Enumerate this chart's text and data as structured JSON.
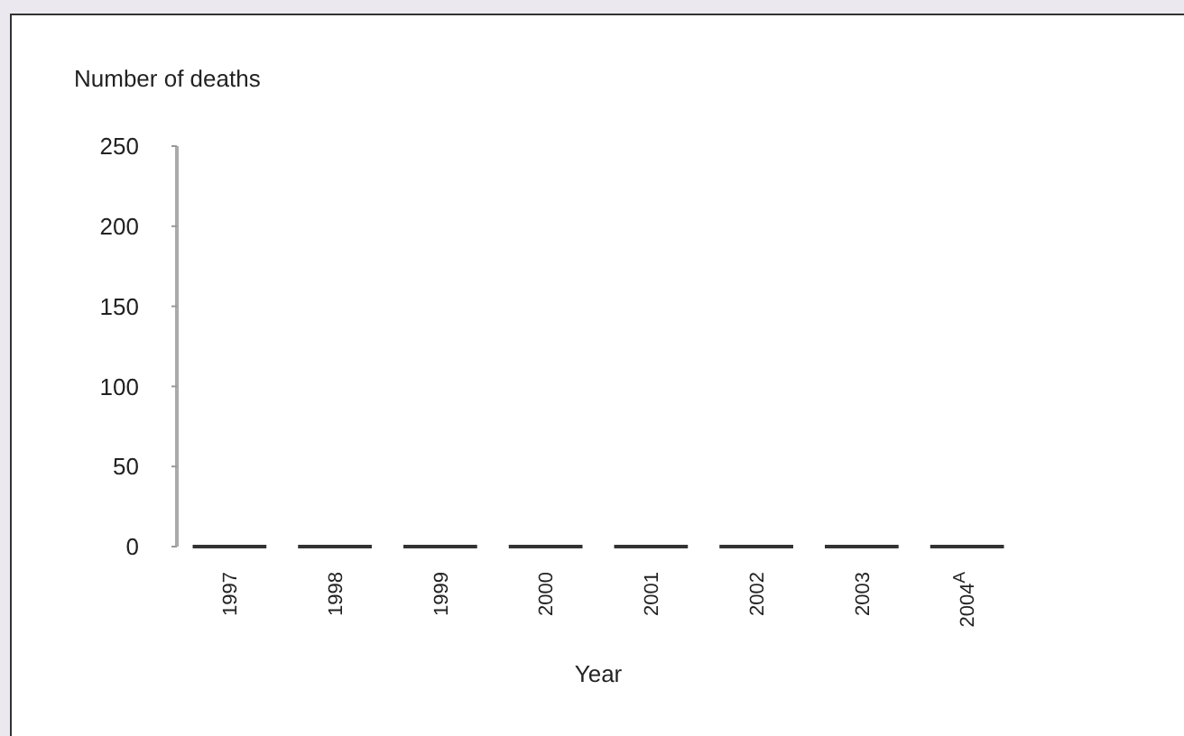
{
  "chart_data": {
    "type": "bar",
    "xlabel": "Year",
    "ylabel": "Number of deaths",
    "categories": [
      "1997",
      "1998",
      "1999",
      "2000",
      "2001",
      "2002",
      "2003",
      "2004$^{A}$"
    ],
    "values": [
      0,
      0,
      0,
      0,
      0,
      0,
      0,
      0
    ],
    "color": "#333333",
    "ylim": [
      0,
      250
    ],
    "yticks": [
      0,
      50,
      100,
      150,
      200,
      250
    ]
  }
}
